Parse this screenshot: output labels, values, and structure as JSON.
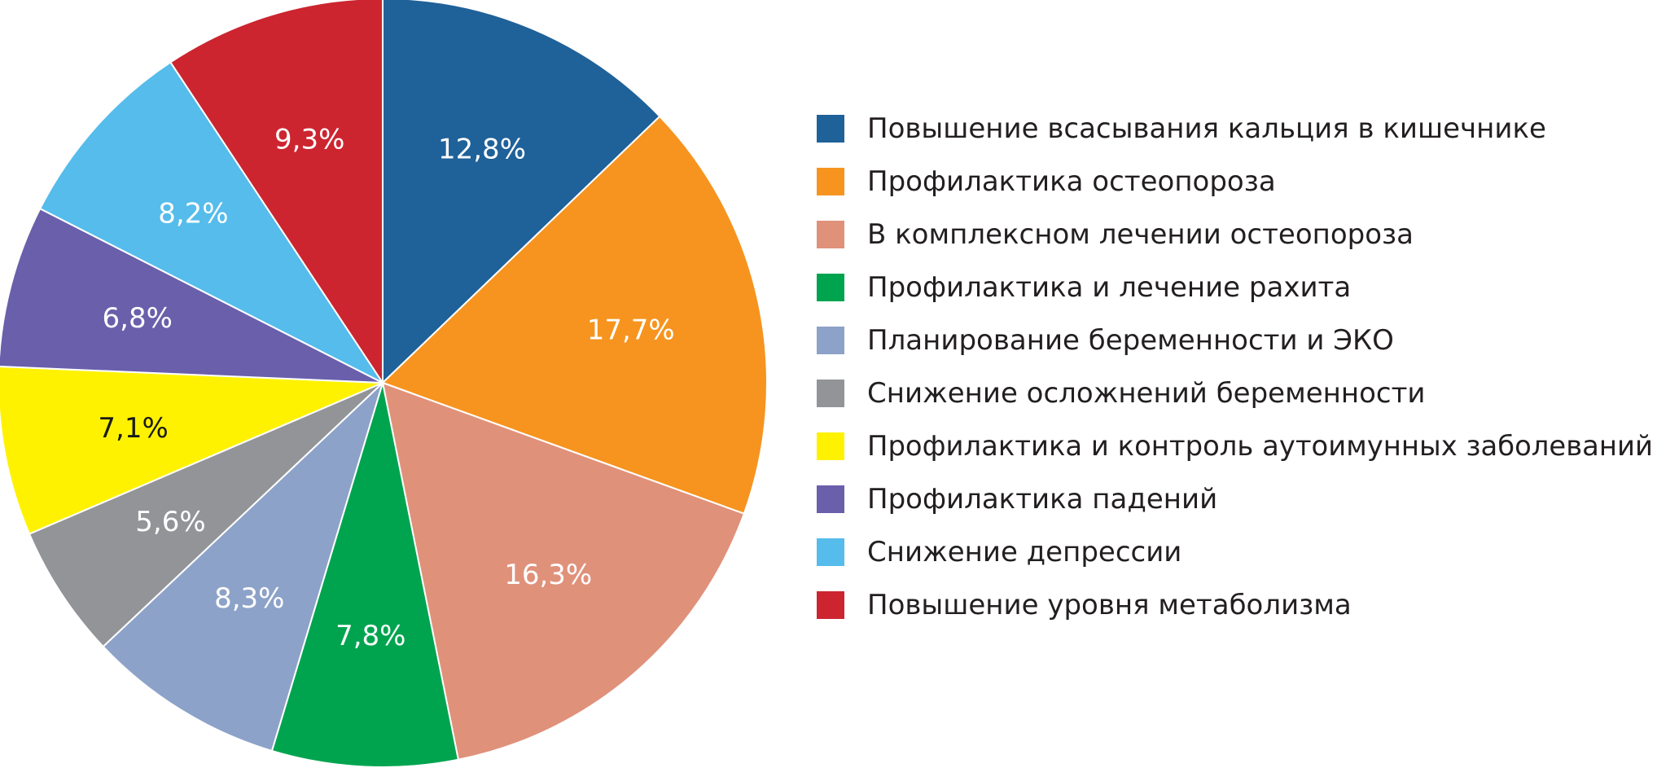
{
  "chart_data": {
    "type": "pie",
    "start": "top",
    "direction": "clockwise",
    "legend_position": "right",
    "slices": [
      {
        "name": "Повышение всасывания кальция в кишечнике",
        "value": 12.8,
        "label": "12,8%",
        "color": "#1f6199"
      },
      {
        "name": "Профилактика остеопороза",
        "value": 17.7,
        "label": "17,7%",
        "color": "#f6941f"
      },
      {
        "name": "В комплексном лечении остеопороза",
        "value": 16.3,
        "label": "16,3%",
        "color": "#e0917a"
      },
      {
        "name": "Профилактика и лечение рахита",
        "value": 7.8,
        "label": "7,8%",
        "color": "#00a44f"
      },
      {
        "name": "Планирование беременности и ЭКО",
        "value": 8.3,
        "label": "8,3%",
        "color": "#8da2c8"
      },
      {
        "name": "Снижение осложнений беременности",
        "value": 5.6,
        "label": "5,6%",
        "color": "#929497"
      },
      {
        "name": "Профилактика и контроль аутоимунных заболеваний",
        "value": 7.1,
        "label": "7,1%",
        "color": "#fff200",
        "label_color": "#1a1a1a"
      },
      {
        "name": "Профилактика падений",
        "value": 6.8,
        "label": "6,8%",
        "color": "#6a5fab"
      },
      {
        "name": "Снижение депрессии",
        "value": 8.2,
        "label": "8,2%",
        "color": "#55bceb"
      },
      {
        "name": "Повышение уровня метаболизма",
        "value": 9.3,
        "label": "9,3%",
        "color": "#cc2530"
      }
    ]
  }
}
